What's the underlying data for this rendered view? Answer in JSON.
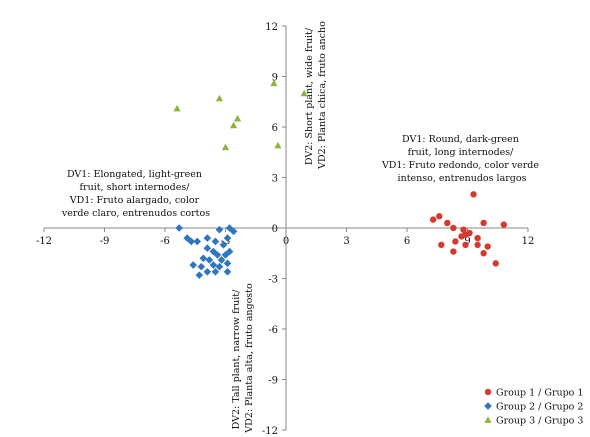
{
  "chart_data": {
    "type": "scatter",
    "xlim": [
      -12,
      12
    ],
    "ylim": [
      -12,
      12
    ],
    "x_ticks": [
      "-12",
      "-9",
      "-6",
      "-3",
      "0",
      "3",
      "6",
      "9",
      "12"
    ],
    "y_ticks": [
      "-12",
      "-9",
      "-6",
      "-3",
      "0",
      "3",
      "6",
      "9",
      "12"
    ],
    "grid": false,
    "legend_position": "bottom-right",
    "series": [
      {
        "name": "Group 1 / Grupo 1",
        "color": "#d63a2e",
        "marker": "circle",
        "points": [
          [
            7.3,
            0.5
          ],
          [
            7.6,
            0.7
          ],
          [
            8.0,
            0.3
          ],
          [
            8.3,
            0.0
          ],
          [
            8.8,
            -0.1
          ],
          [
            9.1,
            -0.3
          ],
          [
            8.9,
            -0.4
          ],
          [
            8.7,
            -0.5
          ],
          [
            9.5,
            -0.6
          ],
          [
            8.4,
            -0.8
          ],
          [
            7.7,
            -1.0
          ],
          [
            8.9,
            -1.0
          ],
          [
            9.5,
            -1.0
          ],
          [
            10.0,
            -1.1
          ],
          [
            8.3,
            -1.4
          ],
          [
            9.3,
            2.0
          ],
          [
            9.8,
            -1.5
          ],
          [
            10.4,
            -2.1
          ],
          [
            10.8,
            0.2
          ],
          [
            9.8,
            0.3
          ]
        ]
      },
      {
        "name": "Group 2 / Grupo 2",
        "color": "#2e75c2",
        "marker": "diamond",
        "points": [
          [
            -5.3,
            0.0
          ],
          [
            -4.9,
            -0.6
          ],
          [
            -4.7,
            -0.8
          ],
          [
            -4.4,
            -0.8
          ],
          [
            -3.9,
            -0.6
          ],
          [
            -3.3,
            -0.1
          ],
          [
            -2.8,
            0.0
          ],
          [
            -2.6,
            -0.2
          ],
          [
            -2.9,
            -0.6
          ],
          [
            -3.5,
            -0.8
          ],
          [
            -3.1,
            -1.0
          ],
          [
            -3.9,
            -1.2
          ],
          [
            -3.6,
            -1.4
          ],
          [
            -2.8,
            -1.4
          ],
          [
            -3.4,
            -1.6
          ],
          [
            -3.0,
            -1.6
          ],
          [
            -4.1,
            -1.8
          ],
          [
            -3.8,
            -1.9
          ],
          [
            -3.2,
            -1.9
          ],
          [
            -2.9,
            -2.1
          ],
          [
            -3.6,
            -2.2
          ],
          [
            -4.6,
            -2.2
          ],
          [
            -4.2,
            -2.3
          ],
          [
            -3.3,
            -2.3
          ],
          [
            -3.9,
            -2.6
          ],
          [
            -3.5,
            -2.6
          ],
          [
            -2.9,
            -2.6
          ],
          [
            -4.3,
            -2.8
          ]
        ]
      },
      {
        "name": "Group 3 / Grupo 3",
        "color": "#8ab53d",
        "marker": "triangle",
        "points": [
          [
            -5.4,
            7.1
          ],
          [
            -3.3,
            7.7
          ],
          [
            -2.4,
            6.5
          ],
          [
            -2.6,
            6.1
          ],
          [
            -3.0,
            4.8
          ],
          [
            -0.6,
            8.6
          ],
          [
            0.9,
            8.0
          ],
          [
            -0.4,
            4.9
          ]
        ]
      }
    ]
  },
  "annotations": {
    "dv1_positive": [
      "DV1: Round, dark-green",
      "fruit, long internodes/",
      "VD1: Fruto redondo, color verde",
      "intenso, entrenudos largos"
    ],
    "dv1_negative": [
      "DV1: Elongated, light-green",
      "fruit, short internodes/",
      "VD1: Fruto alargado, color",
      "verde claro, entrenudos cortos"
    ],
    "dv2_positive": [
      "DV2: Short plant, wide fruit/",
      "VD2: Planta chica, fruto ancho"
    ],
    "dv2_negative": [
      "DV2: Tall plant, narrow fruit/",
      "VD2: Planta alta, fruto angosto"
    ]
  }
}
